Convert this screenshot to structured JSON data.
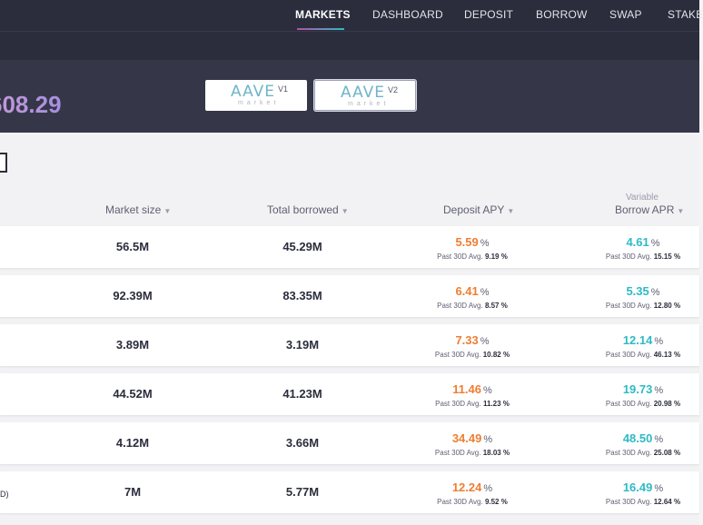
{
  "nav": {
    "items": [
      "MARKETS",
      "DASHBOARD",
      "DEPOSIT",
      "BORROW",
      "SWAP",
      "STAKE"
    ],
    "active": "MARKETS"
  },
  "header": {
    "total_fragment": "608.29",
    "markets": [
      {
        "logo": "AAVE",
        "version": "V1",
        "sub": "market"
      },
      {
        "logo": "AAVE",
        "version": "V2",
        "sub": "market"
      }
    ]
  },
  "table": {
    "columns": {
      "market_size": "Market size",
      "total_borrowed": "Total borrowed",
      "deposit_apy": "Deposit APY",
      "borrow_variable": "Variable",
      "borrow_apr": "Borrow APR"
    },
    "avg_prefix": "Past 30D Avg.",
    "pct": "%",
    "rows": [
      {
        "asset_frag": "",
        "market_size": "56.5M",
        "total_borrowed": "45.29M",
        "deposit_apy": "5.59",
        "deposit_avg": "9.19 %",
        "borrow_apr": "4.61",
        "borrow_avg": "15.15 %"
      },
      {
        "asset_frag": "",
        "market_size": "92.39M",
        "total_borrowed": "83.35M",
        "deposit_apy": "6.41",
        "deposit_avg": "8.57 %",
        "borrow_apr": "5.35",
        "borrow_avg": "12.80 %"
      },
      {
        "asset_frag": "",
        "market_size": "3.89M",
        "total_borrowed": "3.19M",
        "deposit_apy": "7.33",
        "deposit_avg": "10.82 %",
        "borrow_apr": "12.14",
        "borrow_avg": "46.13 %"
      },
      {
        "asset_frag": "",
        "market_size": "44.52M",
        "total_borrowed": "41.23M",
        "deposit_apy": "11.46",
        "deposit_avg": "11.23 %",
        "borrow_apr": "19.73",
        "borrow_avg": "20.98 %"
      },
      {
        "asset_frag": "",
        "market_size": "4.12M",
        "total_borrowed": "3.66M",
        "deposit_apy": "34.49",
        "deposit_avg": "18.03 %",
        "borrow_apr": "48.50",
        "borrow_avg": "25.08 %"
      },
      {
        "asset_frag": "D)",
        "market_size": "7M",
        "total_borrowed": "5.77M",
        "deposit_apy": "12.24",
        "deposit_avg": "9.52 %",
        "borrow_apr": "16.49",
        "borrow_avg": "12.64 %"
      }
    ]
  },
  "colors": {
    "nav_bg": "#2b2d3c",
    "deposit": "#ee7e32",
    "borrow": "#2ebac6",
    "total": "#c49be0"
  }
}
